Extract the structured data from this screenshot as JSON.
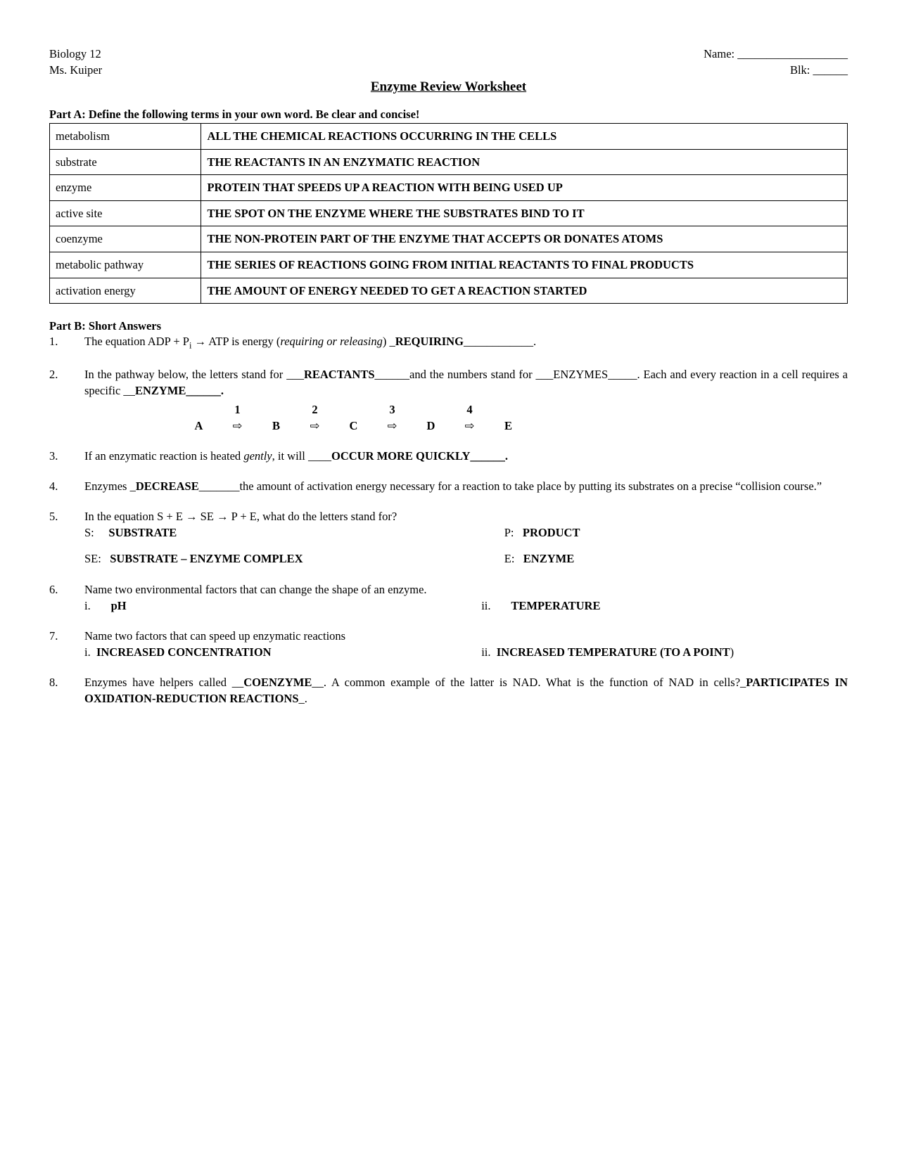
{
  "header": {
    "course": "Biology 12",
    "teacher": "Ms. Kuiper",
    "name_label": "Name: ___________________",
    "blk_label": "Blk: ______"
  },
  "title": "Enzyme Review Worksheet",
  "partA": {
    "heading": "Part A:  Define the following terms in your own word.  Be clear and concise!",
    "rows": [
      {
        "term": "metabolism",
        "def": "ALL THE CHEMICAL REACTIONS OCCURRING IN THE CELLS"
      },
      {
        "term": "substrate",
        "def": "THE REACTANTS IN AN ENZYMATIC REACTION"
      },
      {
        "term": "enzyme",
        "def": "PROTEIN THAT SPEEDS UP A REACTION WITH BEING USED UP"
      },
      {
        "term": "active site",
        "def": "THE SPOT ON THE ENZYME WHERE THE SUBSTRATES BIND TO IT"
      },
      {
        "term": "coenzyme",
        "def": "THE  NON-PROTEIN  PART  OF  THE  ENZYME  THAT  ACCEPTS  OR DONATES ATOMS",
        "justify": true
      },
      {
        "term": "metabolic pathway",
        "def": "THE  SERIES  OF  REACTIONS  GOING  FROM  INITIAL  REACTANTS  TO FINAL PRODUCTS",
        "justify": true
      },
      {
        "term": "activation energy",
        "def": "THE AMOUNT OF ENERGY NEEDED TO GET A REACTION STARTED"
      }
    ]
  },
  "partB": {
    "heading": "Part B:  Short Answers",
    "q1": {
      "pre": "The equation ADP + P",
      "sub": "i",
      "mid": " →  ATP is energy (",
      "ital": "requiring or releasing",
      "aft": ") _",
      "ans": "REQUIRING",
      "tail": "____________."
    },
    "q2": {
      "line1a": "In  the  pathway  below,  the  letters  stand  for  ___",
      "ans1": "REACTANTS",
      "line1b": "______and  the  numbers  stand  for ___ENZYMES_____.  Each and every reaction in a cell requires a specific __",
      "ans2": "ENZYME",
      "line1c": "______.",
      "nums": [
        "1",
        "2",
        "3",
        "4"
      ],
      "letters": [
        "A",
        "B",
        "C",
        "D",
        "E"
      ]
    },
    "q3": {
      "pre": "If an enzymatic reaction is heated ",
      "ital": "gently",
      "mid": ", it will ____",
      "ans": "OCCUR MORE QUICKLY",
      "tail": "______."
    },
    "q4": {
      "pre": "Enzymes _",
      "ans": "DECREASE",
      "tail": "_______the amount of activation energy necessary for a reaction to take place by putting its substrates on a precise “collision course.”"
    },
    "q5": {
      "line1": "In the equation S + E → SE → P + E, what do the letters stand for?",
      "s_lbl": "S:",
      "s_ans": "SUBSTRATE",
      "p_lbl": "P:",
      "p_ans": "PRODUCT",
      "se_lbl": "SE:",
      "se_ans": "SUBSTRATE – ENZYME COMPLEX",
      "e_lbl": "E:",
      "e_ans": "ENZYME"
    },
    "q6": {
      "q": "Name two environmental factors that can change the shape of an enzyme.",
      "i_lbl": "i.",
      "i_ans": "pH",
      "ii_lbl": "ii.",
      "ii_ans": "TEMPERATURE"
    },
    "q7": {
      "q": "Name two factors that can speed up enzymatic reactions",
      "i_lbl": "i.",
      "i_ans": "INCREASED CONCENTRATION",
      "ii_lbl": "ii.",
      "ii_ans": "INCREASED TEMPERATURE (TO A POINT",
      "ii_tail": ")"
    },
    "q8": {
      "pre": "Enzymes have helpers called __",
      "ans1": "COENZYME",
      "mid": "__.  A common example of the latter is NAD.  What is the function of NAD in cells?_",
      "ans2": "PARTICIPATES IN OXIDATION-REDUCTION REACTIONS",
      "tail": "_."
    }
  }
}
